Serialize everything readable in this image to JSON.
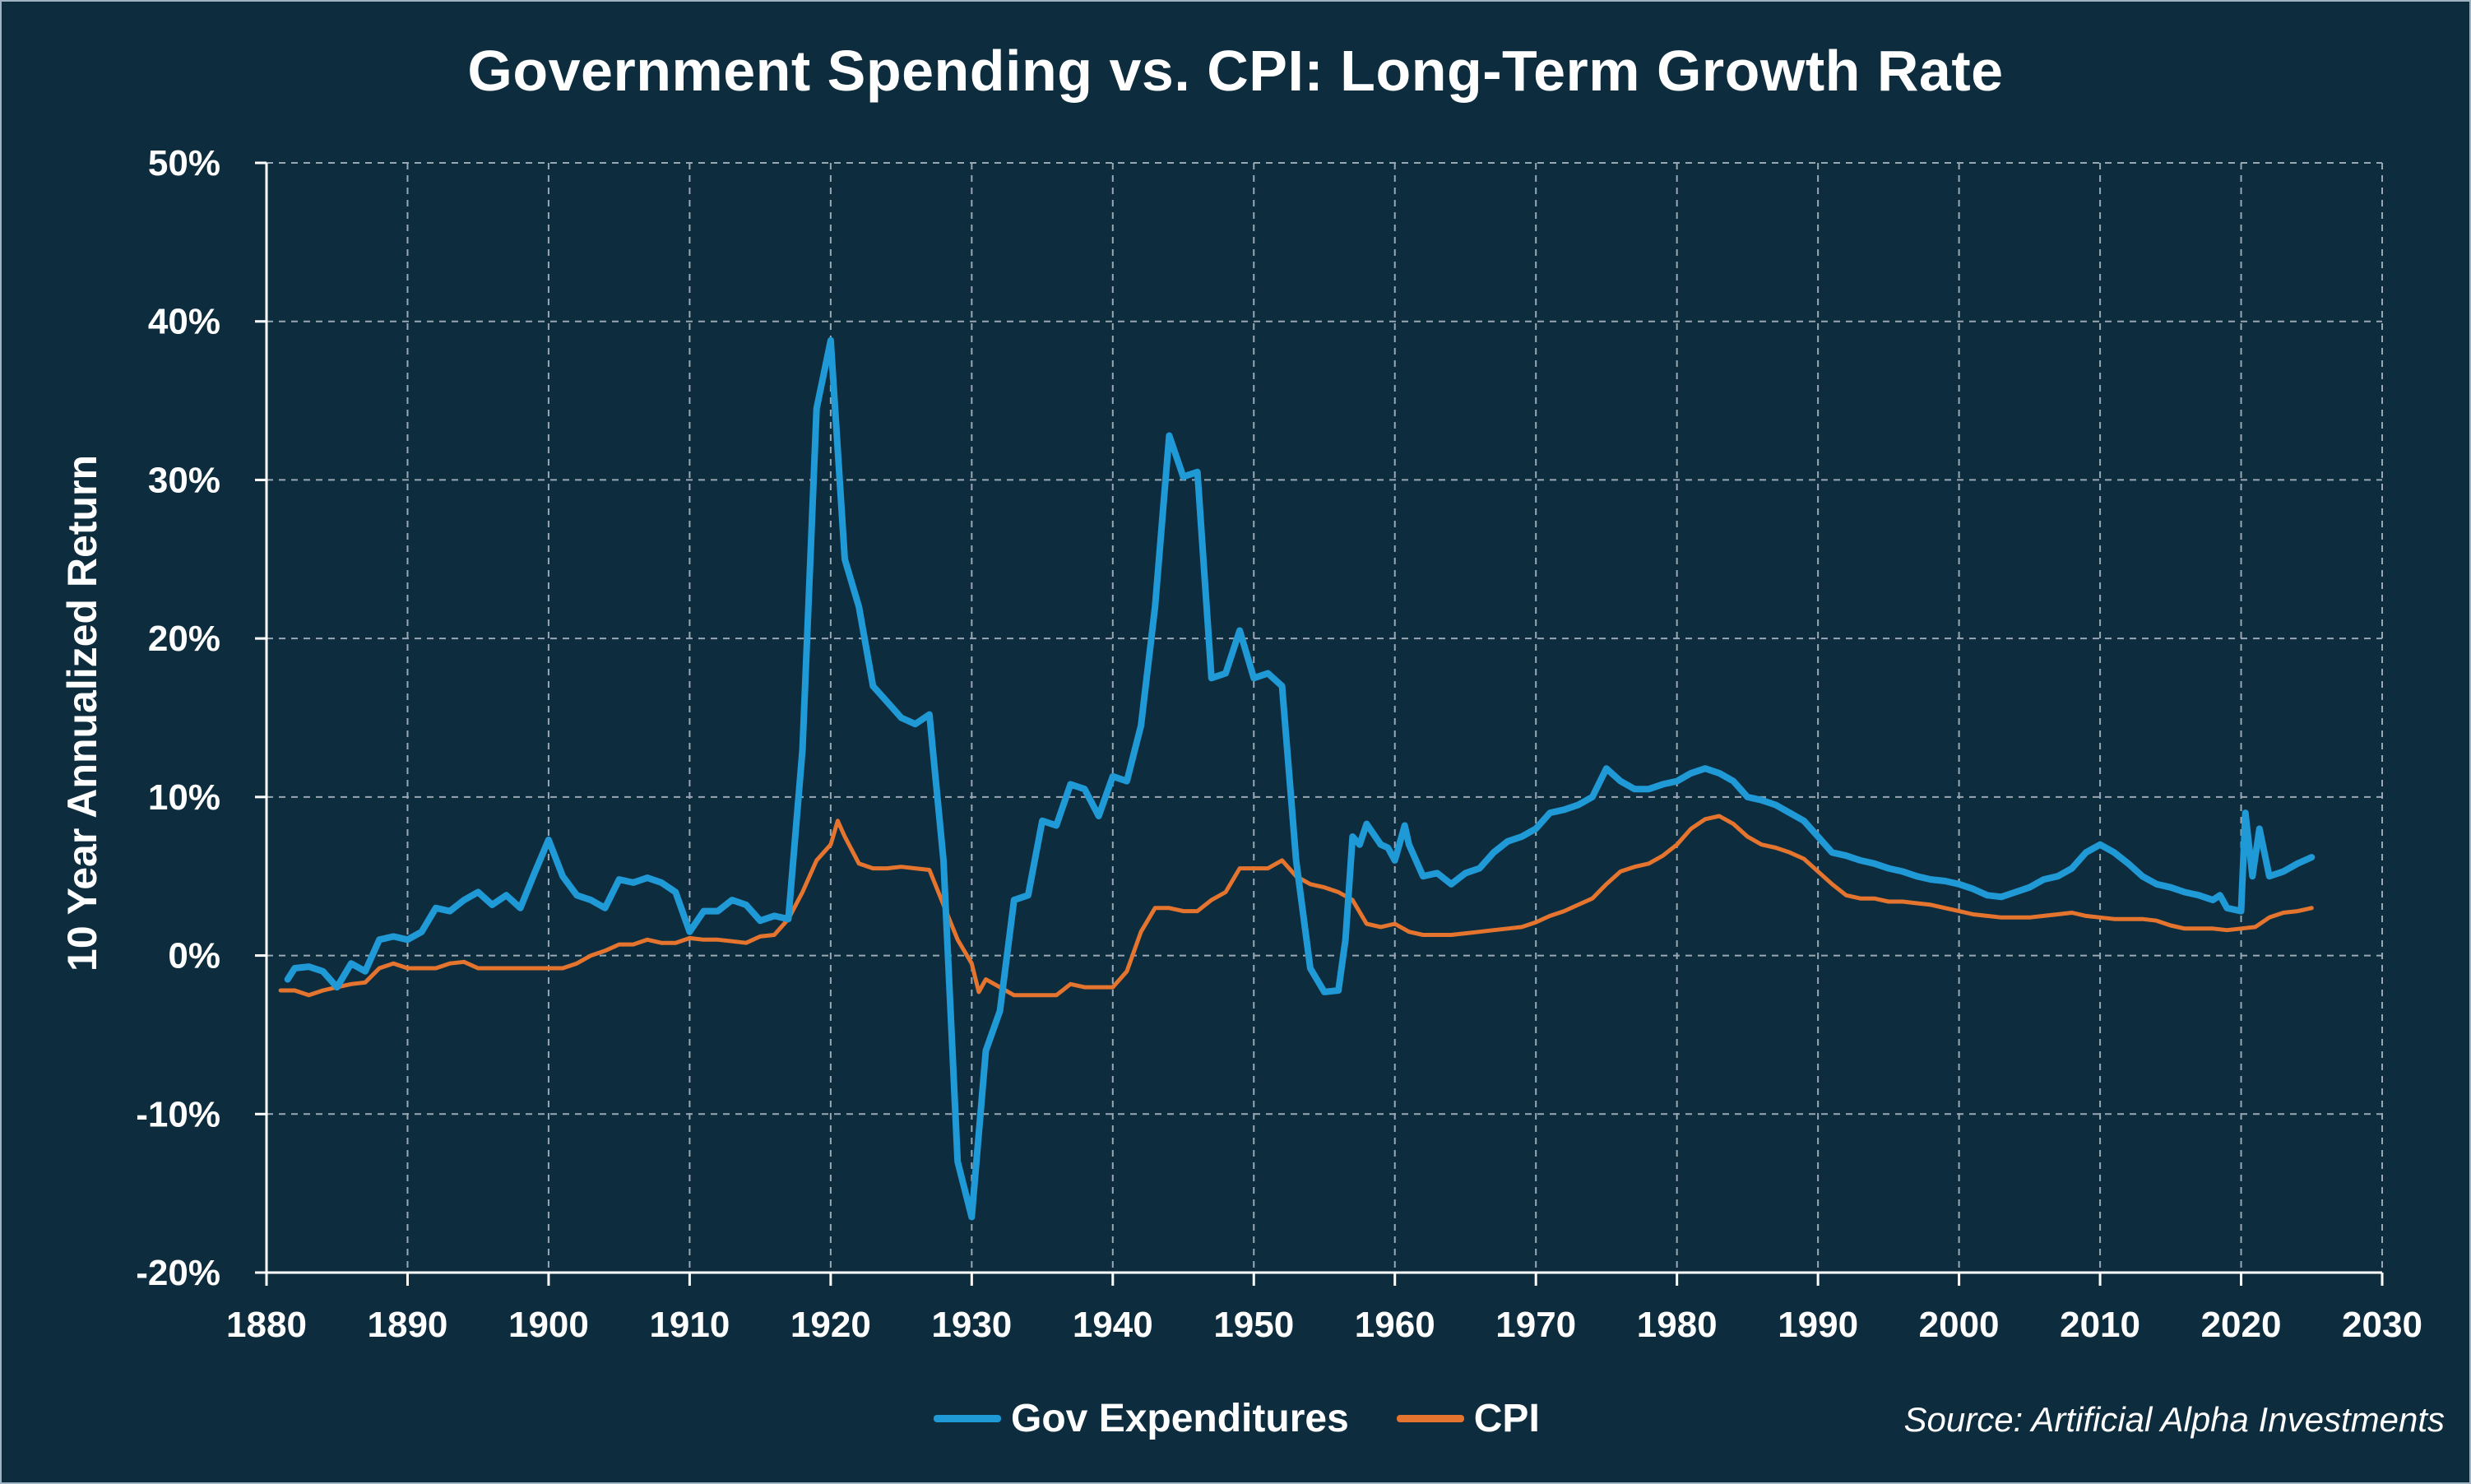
{
  "title": "Government Spending vs. CPI: Long-Term Growth Rate",
  "source": "Source: Artificial Alpha Investments",
  "colors": {
    "background": "#0d2d3f",
    "gov": "#1f9ad6",
    "cpi": "#e5752e",
    "grid": "#9aa8b3"
  },
  "chart_data": {
    "type": "line",
    "title": "Government Spending vs. CPI: Long-Term Growth Rate",
    "xlabel": "",
    "ylabel": "10 Year Annualized Return",
    "xlim": [
      1880,
      2030
    ],
    "ylim": [
      -20,
      50
    ],
    "x_ticks": [
      "1880",
      "1890",
      "1900",
      "1910",
      "1920",
      "1930",
      "1940",
      "1950",
      "1960",
      "1970",
      "1980",
      "1990",
      "2000",
      "2010",
      "2020",
      "2030"
    ],
    "y_ticks": [
      "-20%",
      "-10%",
      "0%",
      "10%",
      "20%",
      "30%",
      "40%",
      "50%"
    ],
    "grid": true,
    "legend_position": "bottom",
    "series": [
      {
        "name": "Gov Expenditures",
        "color": "#1f9ad6",
        "points": [
          [
            1881.5,
            -1.5
          ],
          [
            1882,
            -0.8
          ],
          [
            1883,
            -0.7
          ],
          [
            1884,
            -1.0
          ],
          [
            1885,
            -2.0
          ],
          [
            1886,
            -0.5
          ],
          [
            1887,
            -1.0
          ],
          [
            1888,
            1.0
          ],
          [
            1889,
            1.2
          ],
          [
            1890,
            1.0
          ],
          [
            1891,
            1.5
          ],
          [
            1892,
            3.0
          ],
          [
            1893,
            2.8
          ],
          [
            1894,
            3.5
          ],
          [
            1895,
            4.0
          ],
          [
            1896,
            3.2
          ],
          [
            1897,
            3.8
          ],
          [
            1898,
            3.0
          ],
          [
            1899,
            5.2
          ],
          [
            1900,
            7.3
          ],
          [
            1901,
            5.0
          ],
          [
            1902,
            3.8
          ],
          [
            1903,
            3.5
          ],
          [
            1904,
            3.0
          ],
          [
            1905,
            4.8
          ],
          [
            1906,
            4.6
          ],
          [
            1907,
            4.9
          ],
          [
            1908,
            4.6
          ],
          [
            1909,
            4.0
          ],
          [
            1910,
            1.5
          ],
          [
            1911,
            2.8
          ],
          [
            1912,
            2.8
          ],
          [
            1913,
            3.5
          ],
          [
            1914,
            3.2
          ],
          [
            1915,
            2.2
          ],
          [
            1916,
            2.5
          ],
          [
            1917,
            2.3
          ],
          [
            1918,
            13.0
          ],
          [
            1919,
            34.5
          ],
          [
            1920,
            38.8
          ],
          [
            1921,
            25.0
          ],
          [
            1922,
            22.0
          ],
          [
            1923,
            17.0
          ],
          [
            1924,
            16.0
          ],
          [
            1925,
            15.0
          ],
          [
            1926,
            14.6
          ],
          [
            1927,
            15.2
          ],
          [
            1928,
            6.0
          ],
          [
            1929,
            -13.0
          ],
          [
            1930,
            -16.5
          ],
          [
            1931,
            -6.0
          ],
          [
            1932,
            -3.5
          ],
          [
            1933,
            3.5
          ],
          [
            1934,
            3.8
          ],
          [
            1935,
            8.5
          ],
          [
            1936,
            8.2
          ],
          [
            1937,
            10.8
          ],
          [
            1938,
            10.5
          ],
          [
            1939,
            8.8
          ],
          [
            1940,
            11.3
          ],
          [
            1941,
            11.0
          ],
          [
            1942,
            14.5
          ],
          [
            1943,
            22.0
          ],
          [
            1944,
            32.8
          ],
          [
            1945,
            30.2
          ],
          [
            1946,
            30.5
          ],
          [
            1947,
            17.5
          ],
          [
            1948,
            17.8
          ],
          [
            1949,
            20.5
          ],
          [
            1950,
            17.5
          ],
          [
            1951,
            17.8
          ],
          [
            1952,
            17.0
          ],
          [
            1953,
            6.0
          ],
          [
            1954,
            -0.8
          ],
          [
            1955,
            -2.3
          ],
          [
            1956,
            -2.2
          ],
          [
            1956.5,
            1.0
          ],
          [
            1957,
            7.5
          ],
          [
            1957.5,
            7.0
          ],
          [
            1958,
            8.3
          ],
          [
            1959,
            7.0
          ],
          [
            1959.5,
            6.8
          ],
          [
            1960,
            6.0
          ],
          [
            1960.7,
            8.2
          ],
          [
            1961,
            7.0
          ],
          [
            1962,
            5.0
          ],
          [
            1963,
            5.2
          ],
          [
            1964,
            4.5
          ],
          [
            1965,
            5.2
          ],
          [
            1966,
            5.5
          ],
          [
            1967,
            6.5
          ],
          [
            1968,
            7.2
          ],
          [
            1969,
            7.5
          ],
          [
            1970,
            8.0
          ],
          [
            1971,
            9.0
          ],
          [
            1972,
            9.2
          ],
          [
            1973,
            9.5
          ],
          [
            1974,
            10.0
          ],
          [
            1975,
            11.8
          ],
          [
            1976,
            11.0
          ],
          [
            1977,
            10.5
          ],
          [
            1978,
            10.5
          ],
          [
            1979,
            10.8
          ],
          [
            1980,
            11.0
          ],
          [
            1981,
            11.5
          ],
          [
            1982,
            11.8
          ],
          [
            1983,
            11.5
          ],
          [
            1984,
            11.0
          ],
          [
            1985,
            10.0
          ],
          [
            1986,
            9.8
          ],
          [
            1987,
            9.5
          ],
          [
            1988,
            9.0
          ],
          [
            1989,
            8.5
          ],
          [
            1990,
            7.5
          ],
          [
            1991,
            6.5
          ],
          [
            1992,
            6.3
          ],
          [
            1993,
            6.0
          ],
          [
            1994,
            5.8
          ],
          [
            1995,
            5.5
          ],
          [
            1996,
            5.3
          ],
          [
            1997,
            5.0
          ],
          [
            1998,
            4.8
          ],
          [
            1999,
            4.7
          ],
          [
            2000,
            4.5
          ],
          [
            2001,
            4.2
          ],
          [
            2002,
            3.8
          ],
          [
            2003,
            3.7
          ],
          [
            2004,
            4.0
          ],
          [
            2005,
            4.3
          ],
          [
            2006,
            4.8
          ],
          [
            2007,
            5.0
          ],
          [
            2008,
            5.5
          ],
          [
            2009,
            6.5
          ],
          [
            2010,
            7.0
          ],
          [
            2011,
            6.5
          ],
          [
            2012,
            5.8
          ],
          [
            2013,
            5.0
          ],
          [
            2014,
            4.5
          ],
          [
            2015,
            4.3
          ],
          [
            2016,
            4.0
          ],
          [
            2017,
            3.8
          ],
          [
            2018,
            3.5
          ],
          [
            2018.5,
            3.8
          ],
          [
            2019,
            3.0
          ],
          [
            2020,
            2.8
          ],
          [
            2020.3,
            9.0
          ],
          [
            2020.8,
            5.0
          ],
          [
            2021.3,
            8.0
          ],
          [
            2022,
            5.0
          ],
          [
            2023,
            5.3
          ],
          [
            2024,
            5.8
          ],
          [
            2025,
            6.2
          ]
        ]
      },
      {
        "name": "CPI",
        "color": "#e5752e",
        "points": [
          [
            1881,
            -2.2
          ],
          [
            1882,
            -2.2
          ],
          [
            1883,
            -2.5
          ],
          [
            1884,
            -2.2
          ],
          [
            1885,
            -2.0
          ],
          [
            1886,
            -1.8
          ],
          [
            1887,
            -1.7
          ],
          [
            1888,
            -0.8
          ],
          [
            1889,
            -0.5
          ],
          [
            1890,
            -0.8
          ],
          [
            1891,
            -0.8
          ],
          [
            1892,
            -0.8
          ],
          [
            1893,
            -0.5
          ],
          [
            1894,
            -0.4
          ],
          [
            1895,
            -0.8
          ],
          [
            1896,
            -0.8
          ],
          [
            1897,
            -0.8
          ],
          [
            1898,
            -0.8
          ],
          [
            1899,
            -0.8
          ],
          [
            1900,
            -0.8
          ],
          [
            1901,
            -0.8
          ],
          [
            1902,
            -0.5
          ],
          [
            1903,
            0.0
          ],
          [
            1904,
            0.3
          ],
          [
            1905,
            0.7
          ],
          [
            1906,
            0.7
          ],
          [
            1907,
            1.0
          ],
          [
            1908,
            0.8
          ],
          [
            1909,
            0.8
          ],
          [
            1910,
            1.1
          ],
          [
            1911,
            1.0
          ],
          [
            1912,
            1.0
          ],
          [
            1913,
            0.9
          ],
          [
            1914,
            0.8
          ],
          [
            1915,
            1.2
          ],
          [
            1916,
            1.3
          ],
          [
            1917,
            2.3
          ],
          [
            1918,
            4.0
          ],
          [
            1919,
            6.0
          ],
          [
            1920,
            7.0
          ],
          [
            1920.5,
            8.5
          ],
          [
            1921,
            7.5
          ],
          [
            1922,
            5.8
          ],
          [
            1923,
            5.5
          ],
          [
            1924,
            5.5
          ],
          [
            1925,
            5.6
          ],
          [
            1926,
            5.5
          ],
          [
            1927,
            5.4
          ],
          [
            1928,
            3.2
          ],
          [
            1929,
            1.0
          ],
          [
            1930,
            -0.5
          ],
          [
            1930.5,
            -2.3
          ],
          [
            1931,
            -1.5
          ],
          [
            1932,
            -2.0
          ],
          [
            1933,
            -2.5
          ],
          [
            1934,
            -2.5
          ],
          [
            1935,
            -2.5
          ],
          [
            1936,
            -2.5
          ],
          [
            1937,
            -1.8
          ],
          [
            1938,
            -2.0
          ],
          [
            1939,
            -2.0
          ],
          [
            1940,
            -2.0
          ],
          [
            1941,
            -1.0
          ],
          [
            1942,
            1.5
          ],
          [
            1943,
            3.0
          ],
          [
            1944,
            3.0
          ],
          [
            1945,
            2.8
          ],
          [
            1946,
            2.8
          ],
          [
            1947,
            3.5
          ],
          [
            1948,
            4.0
          ],
          [
            1949,
            5.5
          ],
          [
            1950,
            5.5
          ],
          [
            1951,
            5.5
          ],
          [
            1952,
            6.0
          ],
          [
            1953,
            5.0
          ],
          [
            1954,
            4.5
          ],
          [
            1955,
            4.3
          ],
          [
            1956,
            4.0
          ],
          [
            1957,
            3.5
          ],
          [
            1958,
            2.0
          ],
          [
            1959,
            1.8
          ],
          [
            1960,
            2.0
          ],
          [
            1961,
            1.5
          ],
          [
            1962,
            1.3
          ],
          [
            1963,
            1.3
          ],
          [
            1964,
            1.3
          ],
          [
            1965,
            1.4
          ],
          [
            1966,
            1.5
          ],
          [
            1967,
            1.6
          ],
          [
            1968,
            1.7
          ],
          [
            1969,
            1.8
          ],
          [
            1970,
            2.1
          ],
          [
            1971,
            2.5
          ],
          [
            1972,
            2.8
          ],
          [
            1973,
            3.2
          ],
          [
            1974,
            3.6
          ],
          [
            1975,
            4.5
          ],
          [
            1976,
            5.3
          ],
          [
            1977,
            5.6
          ],
          [
            1978,
            5.8
          ],
          [
            1979,
            6.3
          ],
          [
            1980,
            7.0
          ],
          [
            1981,
            8.0
          ],
          [
            1982,
            8.6
          ],
          [
            1983,
            8.8
          ],
          [
            1984,
            8.3
          ],
          [
            1985,
            7.5
          ],
          [
            1986,
            7.0
          ],
          [
            1987,
            6.8
          ],
          [
            1988,
            6.5
          ],
          [
            1989,
            6.1
          ],
          [
            1990,
            5.3
          ],
          [
            1991,
            4.5
          ],
          [
            1992,
            3.8
          ],
          [
            1993,
            3.6
          ],
          [
            1994,
            3.6
          ],
          [
            1995,
            3.4
          ],
          [
            1996,
            3.4
          ],
          [
            1997,
            3.3
          ],
          [
            1998,
            3.2
          ],
          [
            1999,
            3.0
          ],
          [
            2000,
            2.8
          ],
          [
            2001,
            2.6
          ],
          [
            2002,
            2.5
          ],
          [
            2003,
            2.4
          ],
          [
            2004,
            2.4
          ],
          [
            2005,
            2.4
          ],
          [
            2006,
            2.5
          ],
          [
            2007,
            2.6
          ],
          [
            2008,
            2.7
          ],
          [
            2009,
            2.5
          ],
          [
            2010,
            2.4
          ],
          [
            2011,
            2.3
          ],
          [
            2012,
            2.3
          ],
          [
            2013,
            2.3
          ],
          [
            2014,
            2.2
          ],
          [
            2015,
            1.9
          ],
          [
            2016,
            1.7
          ],
          [
            2017,
            1.7
          ],
          [
            2018,
            1.7
          ],
          [
            2019,
            1.6
          ],
          [
            2020,
            1.7
          ],
          [
            2021,
            1.8
          ],
          [
            2022,
            2.4
          ],
          [
            2023,
            2.7
          ],
          [
            2024,
            2.8
          ],
          [
            2025,
            3.0
          ]
        ]
      }
    ]
  }
}
